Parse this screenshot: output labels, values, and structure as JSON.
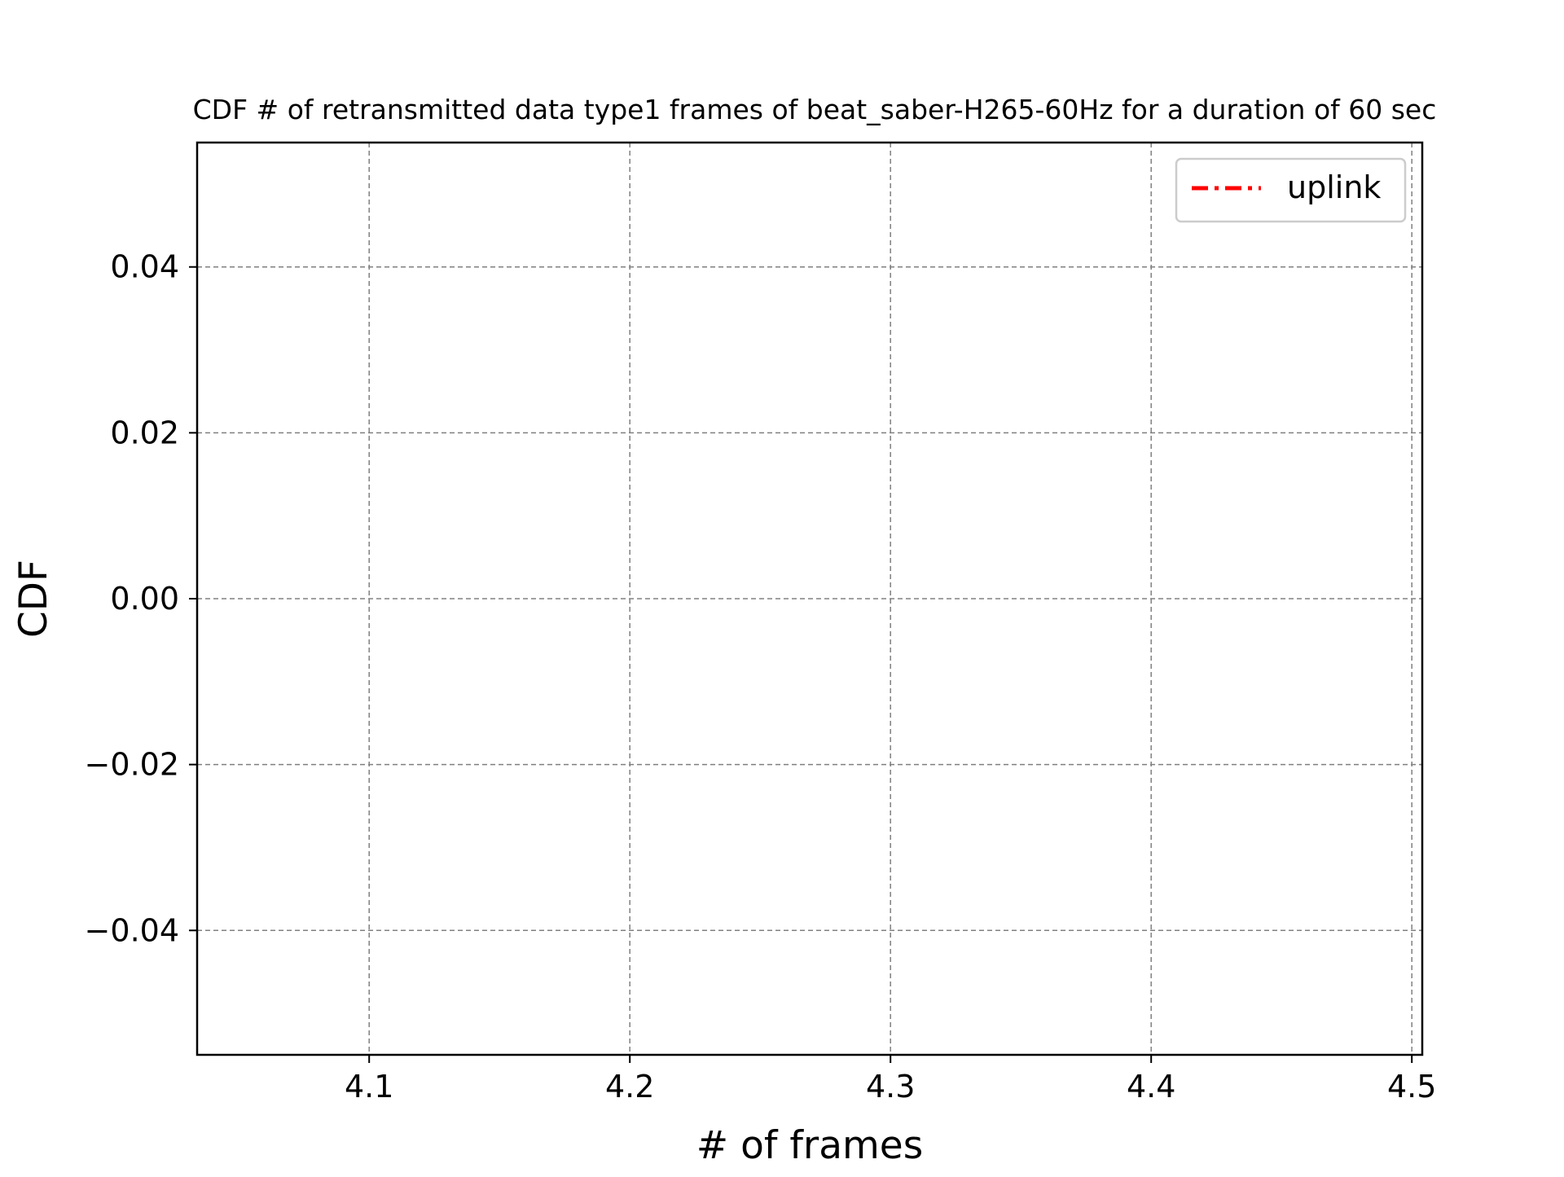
{
  "chart_data": {
    "type": "line",
    "title": "CDF # of retransmitted data type1 frames of beat_saber-H265-60Hz for a duration of 60 sec",
    "xlabel": "# of frames",
    "ylabel": "CDF",
    "xlim": [
      4.034,
      4.504
    ],
    "ylim": [
      -0.055,
      0.055
    ],
    "xticks": [
      4.1,
      4.2,
      4.3,
      4.4,
      4.5
    ],
    "xtick_labels": [
      "4.1",
      "4.2",
      "4.3",
      "4.4",
      "4.5"
    ],
    "yticks": [
      0.04,
      0.02,
      0.0,
      -0.02,
      -0.04
    ],
    "ytick_labels": [
      "0.04",
      "0.02",
      "0.00",
      "−0.02",
      "−0.04"
    ],
    "grid": true,
    "legend_position": "top-right",
    "series": [
      {
        "name": "uplink",
        "color": "#ff0000",
        "linestyle": "dashdot",
        "x": [],
        "y": []
      }
    ]
  }
}
